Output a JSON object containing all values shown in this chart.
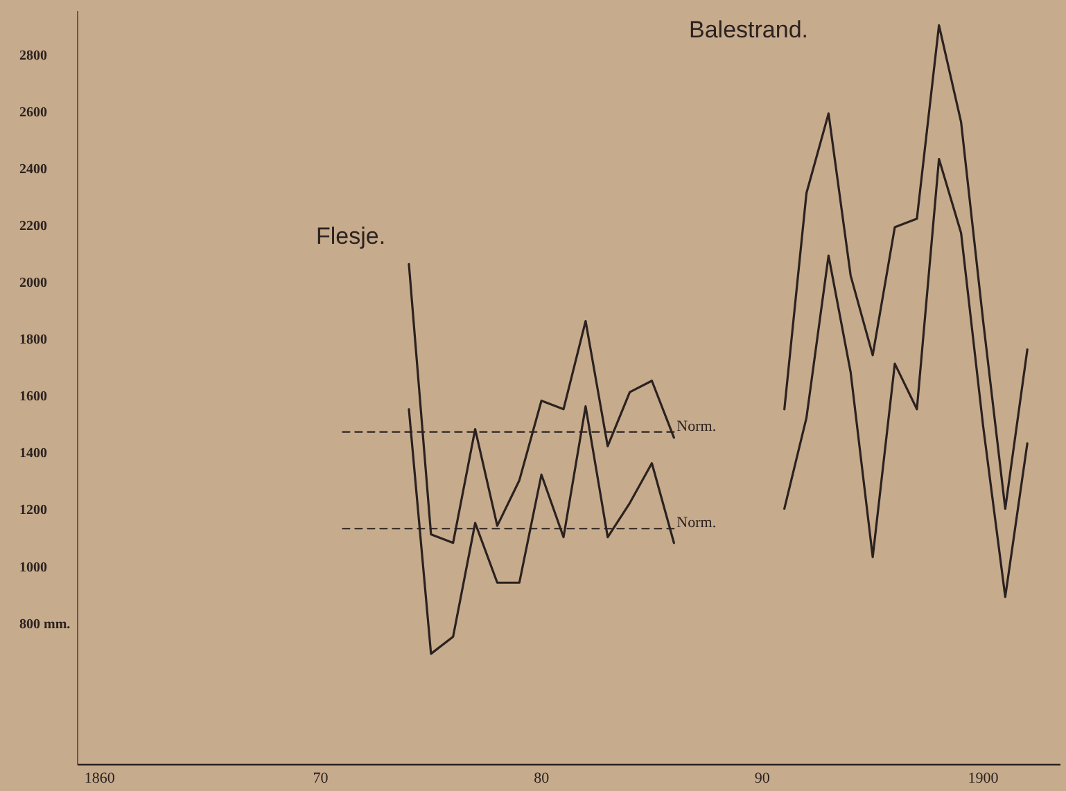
{
  "chart_data": {
    "type": "line",
    "xlim": [
      1859,
      1903.5
    ],
    "ylim": [
      300,
      2950
    ],
    "xticks": [
      1860,
      {
        "value": 1870,
        "label": "70"
      },
      {
        "value": 1880,
        "label": "80"
      },
      {
        "value": 1890,
        "label": "90"
      },
      1900
    ],
    "yticks": [
      {
        "value": 800,
        "label": "800 mm."
      },
      1000,
      1200,
      1400,
      1600,
      1800,
      2000,
      2200,
      2400,
      2600,
      2800
    ],
    "grid": false,
    "legend": false,
    "marker": "none",
    "series": [
      {
        "color": "#2b2220",
        "x": [
          1874,
          1875,
          1876,
          1877,
          1878,
          1879,
          1880,
          1881,
          1882,
          1883,
          1884,
          1885,
          1886
        ],
        "values": [
          2060,
          1110,
          1080,
          1480,
          1140,
          1300,
          1580,
          1550,
          1860,
          1420,
          1610,
          1650,
          1450
        ]
      },
      {
        "color": "#2b2220",
        "x": [
          1874,
          1875,
          1876,
          1877,
          1878,
          1879,
          1880,
          1881,
          1882,
          1883,
          1884,
          1885,
          1886
        ],
        "values": [
          1550,
          690,
          750,
          1150,
          940,
          940,
          1320,
          1100,
          1560,
          1100,
          1220,
          1360,
          1080
        ]
      },
      {
        "name": "Norm.",
        "color": "#2b2220",
        "line_style": "dashed",
        "x": [
          1871,
          1886
        ],
        "values": [
          1470,
          1470
        ]
      },
      {
        "name": "Norm.",
        "color": "#2b2220",
        "line_style": "dashed",
        "x": [
          1871,
          1886
        ],
        "values": [
          1130,
          1130
        ]
      },
      {
        "color": "#2b2220",
        "x": [
          1891,
          1892,
          1893,
          1894,
          1895,
          1896,
          1897,
          1898,
          1899,
          1900,
          1901,
          1902
        ],
        "values": [
          1550,
          2310,
          2590,
          2020,
          1740,
          2190,
          2220,
          2900,
          2560,
          1860,
          1200,
          1760
        ]
      },
      {
        "color": "#2b2220",
        "x": [
          1891,
          1892,
          1893,
          1894,
          1895,
          1896,
          1897,
          1898,
          1899,
          1900,
          1901,
          1902
        ],
        "values": [
          1200,
          1520,
          2090,
          1680,
          1030,
          1710,
          1550,
          2430,
          2170,
          1490,
          890,
          1430
        ]
      }
    ],
    "annotations": [
      "Flesje.",
      "Balestrand."
    ]
  }
}
